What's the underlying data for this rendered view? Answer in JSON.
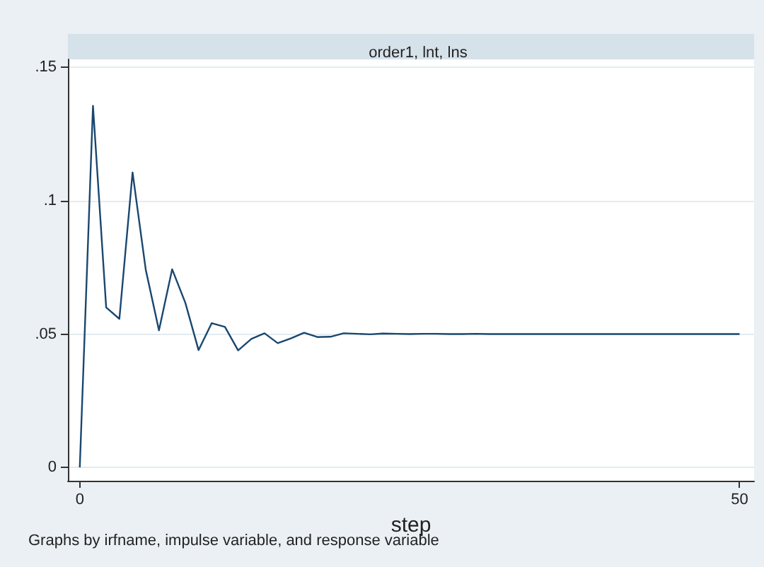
{
  "chart_data": {
    "type": "line",
    "title": "order1, lnt, lns",
    "xlabel": "step",
    "annotations": [
      "Graphs by irfname, impulse variable, and response variable"
    ],
    "x": [
      0,
      1,
      2,
      3,
      4,
      5,
      6,
      7,
      8,
      9,
      10,
      11,
      12,
      13,
      14,
      15,
      16,
      17,
      18,
      19,
      20,
      21,
      22,
      23,
      24,
      25,
      26,
      27,
      28,
      29,
      30,
      31,
      32,
      33,
      34,
      35,
      36,
      37,
      38,
      39,
      40,
      41,
      42,
      43,
      44,
      45,
      46,
      47,
      48,
      49,
      50
    ],
    "values": [
      0,
      0.1356,
      0.06,
      0.0557,
      0.1106,
      0.0741,
      0.0514,
      0.0743,
      0.0617,
      0.044,
      0.0541,
      0.0527,
      0.0439,
      0.0482,
      0.0503,
      0.0466,
      0.0484,
      0.0505,
      0.0489,
      0.049,
      0.0503,
      0.0501,
      0.0499,
      0.0502,
      0.0501,
      0.05,
      0.0501,
      0.0501,
      0.05,
      0.05,
      0.0501,
      0.05,
      0.05,
      0.05,
      0.05,
      0.05,
      0.05,
      0.05,
      0.05,
      0.05,
      0.05,
      0.05,
      0.05,
      0.05,
      0.05,
      0.05,
      0.05,
      0.05,
      0.05,
      0.05,
      0.05
    ],
    "color": "#1a476f",
    "marker": "none",
    "xlim": [
      -0.9,
      51.1
    ],
    "xticks": [
      0,
      50
    ],
    "ylim": [
      -0.005,
      0.153
    ],
    "yticks": [
      0,
      {
        "value": 0.05,
        "label": ".05"
      },
      {
        "value": 0.1,
        "label": ".1"
      },
      {
        "value": 0.15,
        "label": ".15"
      }
    ],
    "grid": "y"
  }
}
